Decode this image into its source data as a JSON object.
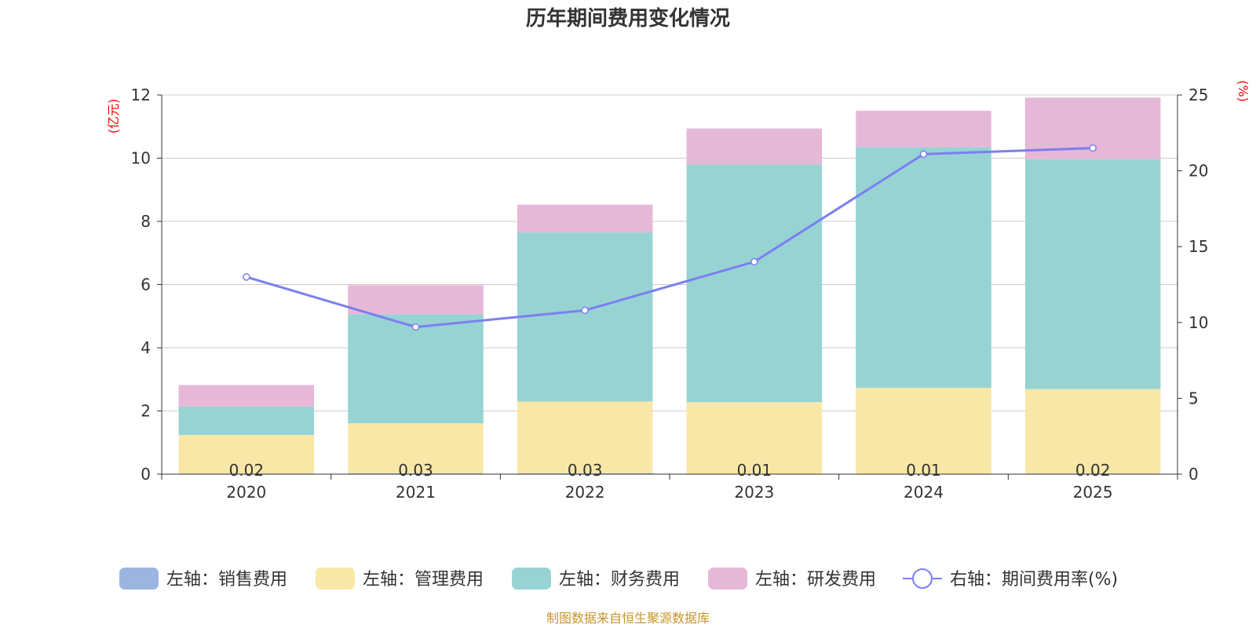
{
  "chart_data": {
    "type": "bar",
    "stacked": true,
    "title": "历年期间费用变化情况",
    "categories": [
      "2020",
      "2021",
      "2022",
      "2023",
      "2024",
      "2025"
    ],
    "left_axis": {
      "unit": "(亿元)",
      "ylim": [
        0,
        12
      ],
      "ticks": [
        "0",
        "2",
        "4",
        "6",
        "8",
        "10",
        "12"
      ]
    },
    "right_axis": {
      "unit": "(%)",
      "ylim": [
        0,
        25
      ],
      "ticks": [
        "0",
        "5",
        "10",
        "15",
        "20",
        "25"
      ]
    },
    "series": [
      {
        "name": "左轴：销售费用",
        "axis": "left",
        "type": "bar",
        "color": "#9bb5e0",
        "values": [
          0.02,
          0.03,
          0.03,
          0.01,
          0.01,
          0.02
        ],
        "labels": [
          "0.02",
          "0.03",
          "0.03",
          "0.01",
          "0.01",
          "0.02"
        ]
      },
      {
        "name": "左轴：管理费用",
        "axis": "left",
        "type": "bar",
        "color": "#f8e7a6",
        "values": [
          1.22,
          1.58,
          2.27,
          2.27,
          2.72,
          2.67
        ]
      },
      {
        "name": "左轴：财务费用",
        "axis": "left",
        "type": "bar",
        "color": "#97d3d3",
        "values": [
          0.9,
          3.45,
          5.35,
          7.52,
          7.62,
          7.28
        ]
      },
      {
        "name": "左轴：研发费用",
        "axis": "left",
        "type": "bar",
        "color": "#e6b8d8",
        "values": [
          0.68,
          0.92,
          0.88,
          1.14,
          1.15,
          1.95
        ]
      },
      {
        "name": "右轴：期间费用率(%)",
        "axis": "right",
        "type": "line",
        "color": "#7b7ff0",
        "values": [
          13.0,
          9.7,
          10.8,
          14.0,
          21.1,
          21.5
        ]
      }
    ],
    "legend_position": "bottom",
    "grid": true
  },
  "source": "制图数据来自恒生聚源数据库",
  "colors": {
    "axis_unit": "#ff0000",
    "source": "#c8962a",
    "grid": "#cccccc",
    "axis": "#333333"
  }
}
